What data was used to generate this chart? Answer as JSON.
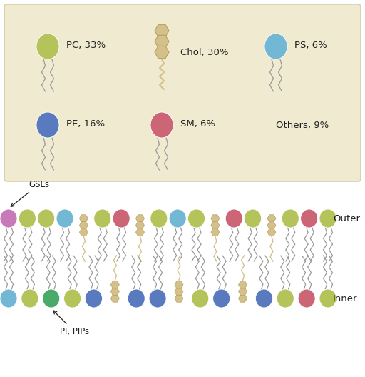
{
  "fig_w": 5.12,
  "fig_h": 5.28,
  "dpi": 100,
  "bg_color": "#ffffff",
  "legend_bg": "#f0ead0",
  "legend_edge": "#d8d0a8",
  "lipid_colors": {
    "PC": "#b5c45a",
    "PE": "#5a7abf",
    "SM": "#cc6677",
    "PS": "#72b8d4",
    "Chol": "#d4c08a",
    "GSL": "#c87ab8",
    "PI": "#4aaa6a"
  },
  "tail_color": "#999999",
  "text_color": "#222222",
  "legend_items": [
    {
      "name": "PC",
      "pct": "33%",
      "color": "#b5c45a",
      "col": 0,
      "row": 0,
      "type": "phospholipid"
    },
    {
      "name": "Chol",
      "pct": "30%",
      "color": "#d4c08a",
      "col": 1,
      "row": 0,
      "type": "cholesterol"
    },
    {
      "name": "PS",
      "pct": "6%",
      "color": "#72b8d4",
      "col": 2,
      "row": 0,
      "type": "phospholipid"
    },
    {
      "name": "PE",
      "pct": "16%",
      "color": "#5a7abf",
      "col": 0,
      "row": 1,
      "type": "phospholipid"
    },
    {
      "name": "SM",
      "pct": "6%",
      "color": "#cc6677",
      "col": 1,
      "row": 1,
      "type": "phospholipid"
    },
    {
      "name": "Others",
      "pct": "9%",
      "color": null,
      "col": 2,
      "row": 1,
      "type": "none"
    }
  ],
  "outer_sequence": [
    "GSL",
    "PC",
    "PC",
    "PS",
    "Chol",
    "PC",
    "SM",
    "Chol",
    "PC",
    "PS",
    "PC",
    "Chol",
    "SM",
    "PC",
    "Chol",
    "PC",
    "SM",
    "PC"
  ],
  "inner_sequence": [
    "PS",
    "PC",
    "PI",
    "PC",
    "PE",
    "Chol",
    "PE",
    "PE",
    "Chol",
    "PC",
    "PE",
    "Chol",
    "PE",
    "PC",
    "SM",
    "PC"
  ],
  "chol_color": "#d4c08a",
  "pc_color": "#b5c45a",
  "pe_color": "#5a7abf",
  "sm_color": "#cc6677",
  "ps_color": "#72b8d4",
  "gsl_color": "#c87ab8",
  "pi_color": "#4aaa6a"
}
